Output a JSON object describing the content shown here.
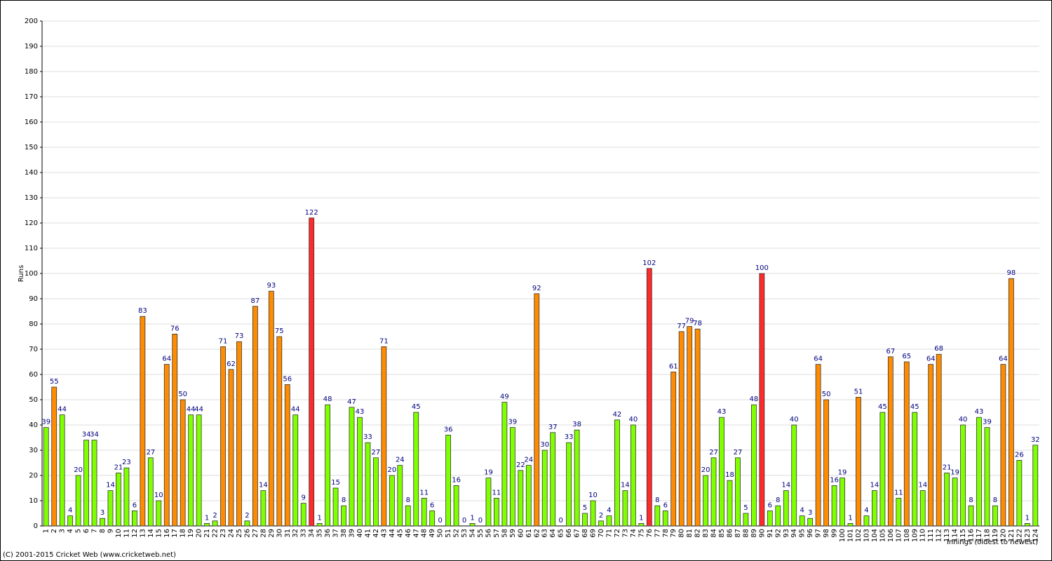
{
  "chart_data": {
    "type": "bar",
    "y_label": "Runs",
    "x_label": "Innings (oldest to newest)",
    "footer": "(C) 2001-2015 Cricket Web (www.cricketweb.net)",
    "categories": [
      "1",
      "2",
      "3",
      "4",
      "5",
      "6",
      "7",
      "8",
      "9",
      "10",
      "11",
      "12",
      "13",
      "14",
      "15",
      "16",
      "17",
      "18",
      "19",
      "20",
      "21",
      "22",
      "23",
      "24",
      "25",
      "26",
      "27",
      "28",
      "29",
      "30",
      "31",
      "32",
      "33",
      "34",
      "35",
      "36",
      "37",
      "38",
      "39",
      "40",
      "41",
      "42",
      "43",
      "44",
      "45",
      "46",
      "47",
      "48",
      "49",
      "50",
      "51",
      "52",
      "53",
      "54",
      "55",
      "56",
      "57",
      "58",
      "59",
      "60",
      "61",
      "62",
      "63",
      "64",
      "65",
      "66",
      "67",
      "68",
      "69",
      "70",
      "71",
      "72",
      "73",
      "74",
      "75",
      "76",
      "77",
      "78",
      "79",
      "80",
      "81",
      "82",
      "83",
      "84",
      "85",
      "86",
      "87",
      "88",
      "89",
      "90",
      "91",
      "92",
      "93",
      "94",
      "95",
      "96",
      "97",
      "98",
      "99",
      "100",
      "101",
      "102",
      "103",
      "104",
      "105",
      "106",
      "107",
      "108",
      "109",
      "110",
      "111",
      "112",
      "113",
      "114",
      "115",
      "116",
      "117",
      "118",
      "119",
      "120",
      "121",
      "122",
      "123",
      "124"
    ],
    "values": [
      39,
      55,
      44,
      4,
      20,
      34,
      34,
      3,
      14,
      21,
      23,
      6,
      83,
      27,
      10,
      64,
      76,
      50,
      44,
      44,
      1,
      2,
      71,
      62,
      73,
      2,
      87,
      14,
      93,
      75,
      56,
      44,
      9,
      122,
      1,
      48,
      15,
      8,
      47,
      43,
      33,
      27,
      71,
      20,
      24,
      8,
      45,
      11,
      6,
      0,
      36,
      16,
      0,
      1,
      0,
      19,
      11,
      49,
      39,
      22,
      24,
      92,
      30,
      37,
      0,
      33,
      38,
      5,
      10,
      2,
      4,
      42,
      14,
      40,
      1,
      102,
      8,
      6,
      61,
      77,
      79,
      78,
      20,
      27,
      43,
      18,
      27,
      5,
      48,
      100,
      6,
      8,
      14,
      40,
      4,
      3,
      64,
      50,
      16,
      19,
      1,
      51,
      4,
      14,
      45,
      67,
      11,
      65,
      45,
      14,
      64,
      68,
      21,
      19,
      40,
      8,
      43,
      39,
      8,
      64,
      98,
      26,
      1,
      32
    ],
    "colors": [
      "#80ff00",
      "#ff8c00",
      "#80ff00",
      "#80ff00",
      "#80ff00",
      "#80ff00",
      "#80ff00",
      "#80ff00",
      "#80ff00",
      "#80ff00",
      "#80ff00",
      "#80ff00",
      "#ff8c00",
      "#80ff00",
      "#80ff00",
      "#ff8c00",
      "#ff8c00",
      "#ff8c00",
      "#80ff00",
      "#80ff00",
      "#80ff00",
      "#80ff00",
      "#ff8c00",
      "#ff8c00",
      "#ff8c00",
      "#80ff00",
      "#ff8c00",
      "#80ff00",
      "#ff8c00",
      "#ff8c00",
      "#ff8c00",
      "#80ff00",
      "#80ff00",
      "#ff2a2a",
      "#80ff00",
      "#80ff00",
      "#80ff00",
      "#80ff00",
      "#80ff00",
      "#80ff00",
      "#80ff00",
      "#80ff00",
      "#ff8c00",
      "#80ff00",
      "#80ff00",
      "#80ff00",
      "#80ff00",
      "#80ff00",
      "#80ff00",
      "#80ff00",
      "#80ff00",
      "#80ff00",
      "#80ff00",
      "#80ff00",
      "#80ff00",
      "#80ff00",
      "#80ff00",
      "#80ff00",
      "#80ff00",
      "#80ff00",
      "#80ff00",
      "#ff8c00",
      "#80ff00",
      "#80ff00",
      "#80ff00",
      "#80ff00",
      "#80ff00",
      "#80ff00",
      "#80ff00",
      "#80ff00",
      "#80ff00",
      "#80ff00",
      "#80ff00",
      "#80ff00",
      "#80ff00",
      "#ff2a2a",
      "#80ff00",
      "#80ff00",
      "#ff8c00",
      "#ff8c00",
      "#ff8c00",
      "#ff8c00",
      "#80ff00",
      "#80ff00",
      "#80ff00",
      "#80ff00",
      "#80ff00",
      "#80ff00",
      "#80ff00",
      "#ff2a2a",
      "#80ff00",
      "#80ff00",
      "#80ff00",
      "#80ff00",
      "#80ff00",
      "#80ff00",
      "#ff8c00",
      "#ff8c00",
      "#80ff00",
      "#80ff00",
      "#80ff00",
      "#ff8c00",
      "#80ff00",
      "#80ff00",
      "#80ff00",
      "#ff8c00",
      "#80ff00",
      "#ff8c00",
      "#80ff00",
      "#80ff00",
      "#ff8c00",
      "#ff8c00",
      "#80ff00",
      "#80ff00",
      "#80ff00",
      "#80ff00",
      "#80ff00",
      "#80ff00",
      "#80ff00",
      "#ff8c00",
      "#ff8c00",
      "#80ff00",
      "#80ff00",
      "#80ff00"
    ],
    "ylim": [
      0,
      200
    ],
    "yticks": [
      0,
      10,
      20,
      30,
      40,
      50,
      60,
      70,
      80,
      90,
      100,
      110,
      120,
      130,
      140,
      150,
      160,
      170,
      180,
      190,
      200
    ],
    "grid": true
  }
}
